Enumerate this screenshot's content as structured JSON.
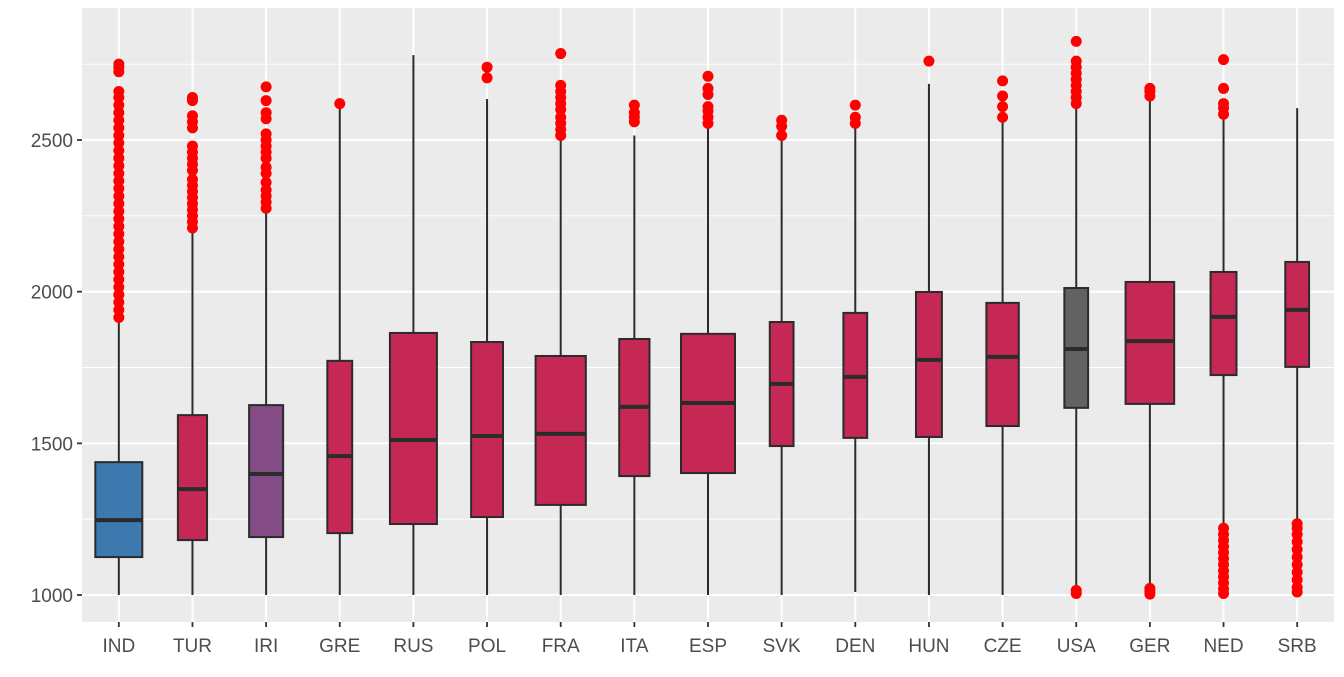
{
  "chart_data": {
    "type": "boxplot",
    "title": "",
    "xlabel": "",
    "ylabel": "",
    "ylim": [
      925,
      2860
    ],
    "yticks": [
      1000,
      1500,
      2000,
      2500
    ],
    "grid": true,
    "legend": "none",
    "colors": {
      "panel": "#EBEBEB",
      "grid": "#FFFFFF",
      "outlier": "#FF0000",
      "box_line": "#2B2B2B"
    },
    "categories": [
      "IND",
      "TUR",
      "IRI",
      "GRE",
      "RUS",
      "POL",
      "FRA",
      "ITA",
      "ESP",
      "SVK",
      "DEN",
      "HUN",
      "CZE",
      "USA",
      "GER",
      "NED",
      "SRB"
    ],
    "boxes": [
      {
        "label": "IND",
        "fill": "#3D79AE",
        "relative_width": 0.87,
        "lower": 1000,
        "q1": 1125,
        "median": 1247,
        "q3": 1438,
        "upper": 1913,
        "outliers": [
          1915,
          1940,
          1965,
          1990,
          2015,
          2040,
          2065,
          2090,
          2115,
          2140,
          2165,
          2190,
          2215,
          2240,
          2265,
          2290,
          2315,
          2340,
          2365,
          2390,
          2415,
          2440,
          2465,
          2490,
          2515,
          2540,
          2565,
          2590,
          2615,
          2640,
          2660,
          2725,
          2740,
          2750
        ]
      },
      {
        "label": "TUR",
        "fill": "#C52855",
        "relative_width": 0.54,
        "lower": 1000,
        "q1": 1181,
        "median": 1349,
        "q3": 1593,
        "upper": 2210,
        "outliers": [
          2210,
          2230,
          2250,
          2270,
          2290,
          2310,
          2330,
          2350,
          2370,
          2400,
          2420,
          2440,
          2460,
          2480,
          2540,
          2560,
          2580,
          2630,
          2640
        ]
      },
      {
        "label": "IRI",
        "fill": "#844C85",
        "relative_width": 0.63,
        "lower": 1000,
        "q1": 1191,
        "median": 1399,
        "q3": 1626,
        "upper": 2270,
        "outliers": [
          2275,
          2295,
          2315,
          2335,
          2360,
          2390,
          2410,
          2440,
          2460,
          2480,
          2500,
          2520,
          2570,
          2590,
          2630,
          2675
        ]
      },
      {
        "label": "GRE",
        "fill": "#C52855",
        "relative_width": 0.46,
        "lower": 1000,
        "q1": 1204,
        "median": 1458,
        "q3": 1772,
        "upper": 2610,
        "outliers": [
          2620
        ]
      },
      {
        "label": "RUS",
        "fill": "#C52855",
        "relative_width": 0.87,
        "lower": 1000,
        "q1": 1234,
        "median": 1511,
        "q3": 1864,
        "upper": 2780,
        "outliers": []
      },
      {
        "label": "POL",
        "fill": "#C52855",
        "relative_width": 0.59,
        "lower": 1000,
        "q1": 1257,
        "median": 1524,
        "q3": 1834,
        "upper": 2635,
        "outliers": [
          2705,
          2740
        ]
      },
      {
        "label": "FRA",
        "fill": "#C52855",
        "relative_width": 0.93,
        "lower": 1000,
        "q1": 1297,
        "median": 1531,
        "q3": 1788,
        "upper": 2515,
        "outliers": [
          2515,
          2535,
          2555,
          2575,
          2600,
          2620,
          2640,
          2660,
          2680,
          2785
        ]
      },
      {
        "label": "ITA",
        "fill": "#C52855",
        "relative_width": 0.56,
        "lower": 1000,
        "q1": 1392,
        "median": 1620,
        "q3": 1844,
        "upper": 2515,
        "outliers": [
          2560,
          2575,
          2590,
          2615
        ]
      },
      {
        "label": "ESP",
        "fill": "#C52855",
        "relative_width": 1.0,
        "lower": 1000,
        "q1": 1402,
        "median": 1633,
        "q3": 1861,
        "upper": 2550,
        "outliers": [
          2555,
          2575,
          2595,
          2610,
          2650,
          2670,
          2710
        ]
      },
      {
        "label": "SVK",
        "fill": "#C52855",
        "relative_width": 0.44,
        "lower": 1000,
        "q1": 1491,
        "median": 1696,
        "q3": 1900,
        "upper": 2510,
        "outliers": [
          2515,
          2545,
          2565
        ]
      },
      {
        "label": "DEN",
        "fill": "#C52855",
        "relative_width": 0.44,
        "lower": 1010,
        "q1": 1518,
        "median": 1719,
        "q3": 1930,
        "upper": 2545,
        "outliers": [
          2555,
          2575,
          2615
        ]
      },
      {
        "label": "HUN",
        "fill": "#C52855",
        "relative_width": 0.48,
        "lower": 1000,
        "q1": 1521,
        "median": 1775,
        "q3": 1999,
        "upper": 2685,
        "outliers": [
          2760
        ]
      },
      {
        "label": "CZE",
        "fill": "#C52855",
        "relative_width": 0.6,
        "lower": 1000,
        "q1": 1557,
        "median": 1785,
        "q3": 1963,
        "upper": 2570,
        "outliers": [
          2575,
          2610,
          2645,
          2695
        ]
      },
      {
        "label": "USA",
        "fill": "#626262",
        "relative_width": 0.44,
        "lower": 1020,
        "q1": 1617,
        "median": 1811,
        "q3": 2012,
        "upper": 2615,
        "outliers": [
          1005,
          1015,
          2620,
          2640,
          2660,
          2680,
          2700,
          2720,
          2740,
          2760,
          2825
        ]
      },
      {
        "label": "GER",
        "fill": "#C52855",
        "relative_width": 0.9,
        "lower": 1025,
        "q1": 1630,
        "median": 1837,
        "q3": 2032,
        "upper": 2640,
        "outliers": [
          1003,
          1012,
          1022,
          2645,
          2660,
          2670
        ]
      },
      {
        "label": "NED",
        "fill": "#C52855",
        "relative_width": 0.48,
        "lower": 1225,
        "q1": 1725,
        "median": 1917,
        "q3": 2065,
        "upper": 2580,
        "outliers": [
          1005,
          1020,
          1040,
          1060,
          1080,
          1100,
          1120,
          1140,
          1160,
          1180,
          1200,
          1220,
          2585,
          2605,
          2620,
          2670,
          2765
        ]
      },
      {
        "label": "SRB",
        "fill": "#C52855",
        "relative_width": 0.44,
        "lower": 1235,
        "q1": 1752,
        "median": 1940,
        "q3": 2098,
        "upper": 2605,
        "outliers": [
          1010,
          1025,
          1050,
          1075,
          1100,
          1125,
          1150,
          1175,
          1200,
          1220,
          1235
        ]
      }
    ]
  }
}
